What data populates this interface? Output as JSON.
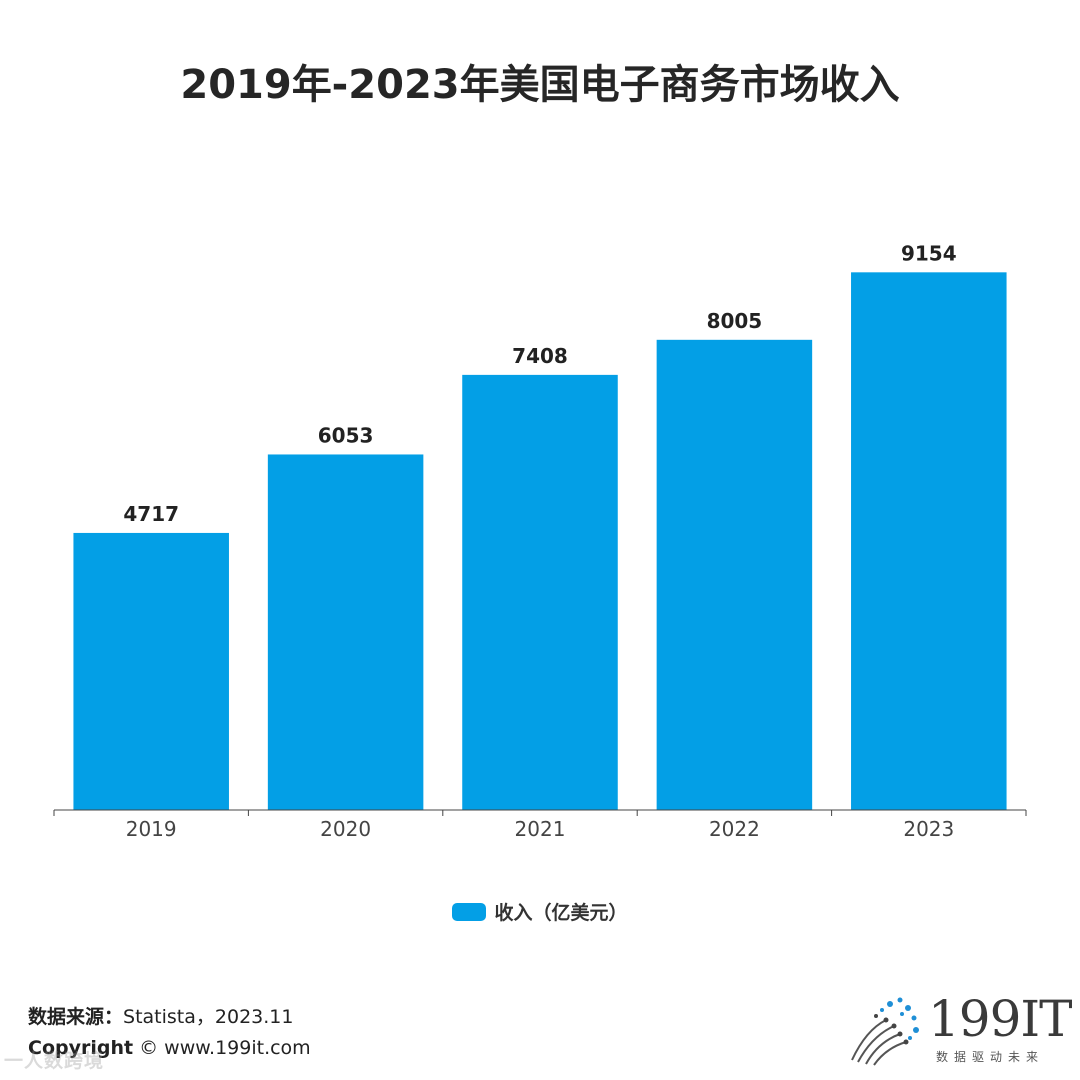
{
  "chart_data": {
    "type": "bar",
    "title": "2019年-2023年美国电子商务市场收入",
    "categories": [
      "2019",
      "2020",
      "2021",
      "2022",
      "2023"
    ],
    "series": [
      {
        "name": "收入（亿美元）",
        "values": [
          4717,
          6053,
          7408,
          8005,
          9154
        ]
      }
    ],
    "ylim": [
      0,
      9500
    ],
    "grid": false,
    "legend": "bottom-center",
    "bar_color": "#039fe6"
  },
  "footer": {
    "source_label": "数据来源：",
    "source_value": "Statista，2023.11",
    "copyright_label": "Copyright",
    "copyright_value": "© www.199it.com",
    "watermark": "一人数跨境"
  },
  "logo": {
    "name": "199IT",
    "tagline": "数据驱动未来",
    "color_dark": "#3a3a3a",
    "color_blue": "#1f8fd6"
  }
}
